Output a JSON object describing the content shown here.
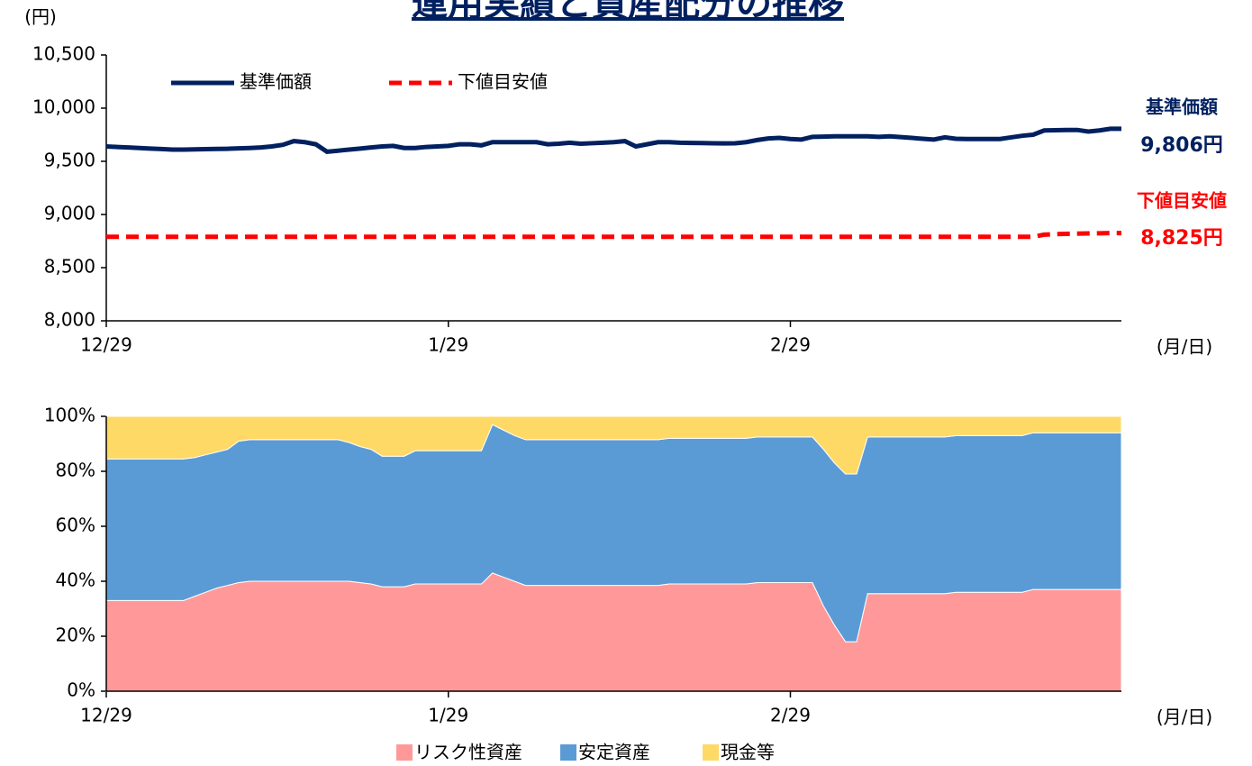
{
  "title": "運用実績と資産配分の推移",
  "chart_data": [
    {
      "type": "line",
      "y_label": "(円)",
      "x_label": "(月/日)",
      "categories": [
        "12/29",
        null,
        null,
        null,
        null,
        null,
        null,
        null,
        null,
        null,
        null,
        null,
        null,
        null,
        null,
        null,
        null,
        null,
        null,
        null,
        null,
        null,
        null,
        null,
        null,
        null,
        null,
        null,
        null,
        null,
        null,
        "1/29",
        null,
        null,
        null,
        null,
        null,
        null,
        null,
        null,
        null,
        null,
        null,
        null,
        null,
        null,
        null,
        null,
        null,
        null,
        null,
        null,
        null,
        null,
        null,
        null,
        null,
        null,
        null,
        null,
        null,
        null,
        "2/29",
        null,
        null,
        null,
        null,
        null,
        null,
        null,
        null,
        null,
        null,
        null,
        null,
        null,
        null,
        null,
        null,
        null,
        null,
        null,
        null,
        null,
        null,
        null,
        null,
        null,
        null,
        null,
        null,
        null,
        null
      ],
      "ylim": [
        8000,
        10500
      ],
      "yticks": [
        {
          "value": 8000,
          "label": "8,000"
        },
        {
          "value": 8500,
          "label": "8,500"
        },
        {
          "value": 9000,
          "label": "9,000"
        },
        {
          "value": 9500,
          "label": "9,500"
        },
        {
          "value": 10000,
          "label": "10,000"
        },
        {
          "value": 10500,
          "label": "10,500"
        }
      ],
      "legend": "top-left",
      "series": [
        {
          "name": "基準価額",
          "color": "#002060",
          "line_style": "solid",
          "end_label": "9,806円",
          "values": [
            9640,
            9635,
            9630,
            9625,
            9620,
            9615,
            9610,
            9610,
            9612,
            9614,
            9616,
            9618,
            9622,
            9625,
            9630,
            9640,
            9655,
            9690,
            9680,
            9660,
            9590,
            9600,
            9610,
            9620,
            9630,
            9640,
            9645,
            9625,
            9625,
            9635,
            9640,
            9645,
            9660,
            9660,
            9650,
            9680,
            9680,
            9680,
            9680,
            9680,
            9660,
            9665,
            9675,
            9665,
            9670,
            9675,
            9680,
            9690,
            9640,
            9660,
            9680,
            9680,
            9675,
            9673,
            9672,
            9670,
            9668,
            9670,
            9680,
            9700,
            9715,
            9720,
            9710,
            9705,
            9730,
            9732,
            9735,
            9735,
            9735,
            9735,
            9730,
            9735,
            9728,
            9720,
            9712,
            9705,
            9725,
            9712,
            9710,
            9710,
            9710,
            9710,
            9725,
            9740,
            9750,
            9790,
            9792,
            9795,
            9795,
            9780,
            9790,
            9806,
            9806
          ]
        },
        {
          "name": "下値目安値",
          "color": "#ff0000",
          "line_style": "dashed",
          "end_label": "8,825円",
          "values": [
            8790,
            8790,
            8790,
            8790,
            8790,
            8790,
            8790,
            8790,
            8790,
            8790,
            8790,
            8790,
            8790,
            8790,
            8790,
            8790,
            8790,
            8790,
            8790,
            8790,
            8790,
            8790,
            8790,
            8790,
            8790,
            8790,
            8790,
            8790,
            8790,
            8790,
            8790,
            8790,
            8790,
            8790,
            8790,
            8790,
            8790,
            8790,
            8790,
            8790,
            8790,
            8790,
            8790,
            8790,
            8790,
            8790,
            8790,
            8790,
            8790,
            8790,
            8790,
            8790,
            8790,
            8790,
            8790,
            8790,
            8790,
            8790,
            8790,
            8790,
            8790,
            8790,
            8790,
            8790,
            8790,
            8790,
            8790,
            8790,
            8790,
            8790,
            8790,
            8790,
            8790,
            8790,
            8790,
            8790,
            8790,
            8790,
            8790,
            8790,
            8790,
            8790,
            8790,
            8790,
            8790,
            8810,
            8815,
            8818,
            8820,
            8822,
            8823,
            8825,
            8825
          ]
        }
      ]
    },
    {
      "type": "stacked_area",
      "x_label": "(月/日)",
      "categories": [
        "12/29",
        null,
        null,
        null,
        null,
        null,
        null,
        null,
        null,
        null,
        null,
        null,
        null,
        null,
        null,
        null,
        null,
        null,
        null,
        null,
        null,
        null,
        null,
        null,
        null,
        null,
        null,
        null,
        null,
        null,
        null,
        "1/29",
        null,
        null,
        null,
        null,
        null,
        null,
        null,
        null,
        null,
        null,
        null,
        null,
        null,
        null,
        null,
        null,
        null,
        null,
        null,
        null,
        null,
        null,
        null,
        null,
        null,
        null,
        null,
        null,
        null,
        null,
        "2/29",
        null,
        null,
        null,
        null,
        null,
        null,
        null,
        null,
        null,
        null,
        null,
        null,
        null,
        null,
        null,
        null,
        null,
        null,
        null,
        null,
        null,
        null,
        null,
        null,
        null,
        null,
        null,
        null,
        null,
        null
      ],
      "ylim": [
        0,
        100
      ],
      "yticks": [
        {
          "value": 0,
          "label": "0%"
        },
        {
          "value": 20,
          "label": "20%"
        },
        {
          "value": 40,
          "label": "40%"
        },
        {
          "value": 60,
          "label": "60%"
        },
        {
          "value": 80,
          "label": "80%"
        },
        {
          "value": 100,
          "label": "100%"
        }
      ],
      "legend": "bottom",
      "series": [
        {
          "name": "リスク性資産",
          "color": "#ff9999",
          "values": [
            33,
            33,
            33,
            33,
            33,
            33,
            33,
            33,
            34.5,
            36,
            37.5,
            38.5,
            39.5,
            40,
            40,
            40,
            40,
            40,
            40,
            40,
            40,
            40,
            40,
            39.5,
            39,
            38,
            38,
            38,
            39,
            39,
            39,
            39,
            39,
            39,
            39,
            43,
            41.5,
            40,
            38.5,
            38.5,
            38.5,
            38.5,
            38.5,
            38.5,
            38.5,
            38.5,
            38.5,
            38.5,
            38.5,
            38.5,
            38.5,
            39,
            39,
            39,
            39,
            39,
            39,
            39,
            39,
            39.5,
            39.5,
            39.5,
            39.5,
            39.5,
            39.5,
            31,
            24,
            18,
            18,
            35.5,
            35.5,
            35.5,
            35.5,
            35.5,
            35.5,
            35.5,
            35.5,
            36,
            36,
            36,
            36,
            36,
            36,
            36,
            37,
            37,
            37,
            37,
            37,
            37,
            37,
            37,
            37
          ]
        },
        {
          "name": "安定資産",
          "color": "#5b9bd5",
          "values": [
            51.5,
            51.5,
            51.5,
            51.5,
            51.5,
            51.5,
            51.5,
            51.5,
            50.5,
            50,
            49.5,
            49.5,
            51.5,
            51.5,
            51.5,
            51.5,
            51.5,
            51.5,
            51.5,
            51.5,
            51.5,
            51.5,
            50.5,
            49.5,
            49,
            47.5,
            47.5,
            47.5,
            48.5,
            48.5,
            48.5,
            48.5,
            48.5,
            48.5,
            48.5,
            54,
            53.5,
            53,
            53,
            53,
            53,
            53,
            53,
            53,
            53,
            53,
            53,
            53,
            53,
            53,
            53,
            53,
            53,
            53,
            53,
            53,
            53,
            53,
            53,
            53,
            53,
            53,
            53,
            53,
            53,
            57,
            59,
            61,
            61,
            57,
            57,
            57,
            57,
            57,
            57,
            57,
            57,
            57,
            57,
            57,
            57,
            57,
            57,
            57,
            57,
            57,
            57,
            57,
            57,
            57,
            57,
            57,
            57
          ]
        },
        {
          "name": "現金等",
          "color": "#ffd966",
          "values": [
            15.5,
            15.5,
            15.5,
            15.5,
            15.5,
            15.5,
            15.5,
            15.5,
            15,
            14,
            13,
            12,
            9,
            8.5,
            8.5,
            8.5,
            8.5,
            8.5,
            8.5,
            8.5,
            8.5,
            8.5,
            9.5,
            11,
            12,
            14.5,
            14.5,
            14.5,
            12.5,
            12.5,
            12.5,
            12.5,
            12.5,
            12.5,
            12.5,
            3,
            5,
            7,
            8.5,
            8.5,
            8.5,
            8.5,
            8.5,
            8.5,
            8.5,
            8.5,
            8.5,
            8.5,
            8.5,
            8.5,
            8.5,
            8,
            8,
            8,
            8,
            8,
            8,
            8,
            8,
            7.5,
            7.5,
            7.5,
            7.5,
            7.5,
            7.5,
            12,
            17,
            21,
            21,
            7.5,
            7.5,
            7.5,
            7.5,
            7.5,
            7.5,
            7.5,
            7.5,
            7,
            7,
            7,
            7,
            7,
            7,
            7,
            6,
            6,
            6,
            6,
            6,
            6,
            6,
            6,
            6
          ]
        }
      ]
    }
  ]
}
